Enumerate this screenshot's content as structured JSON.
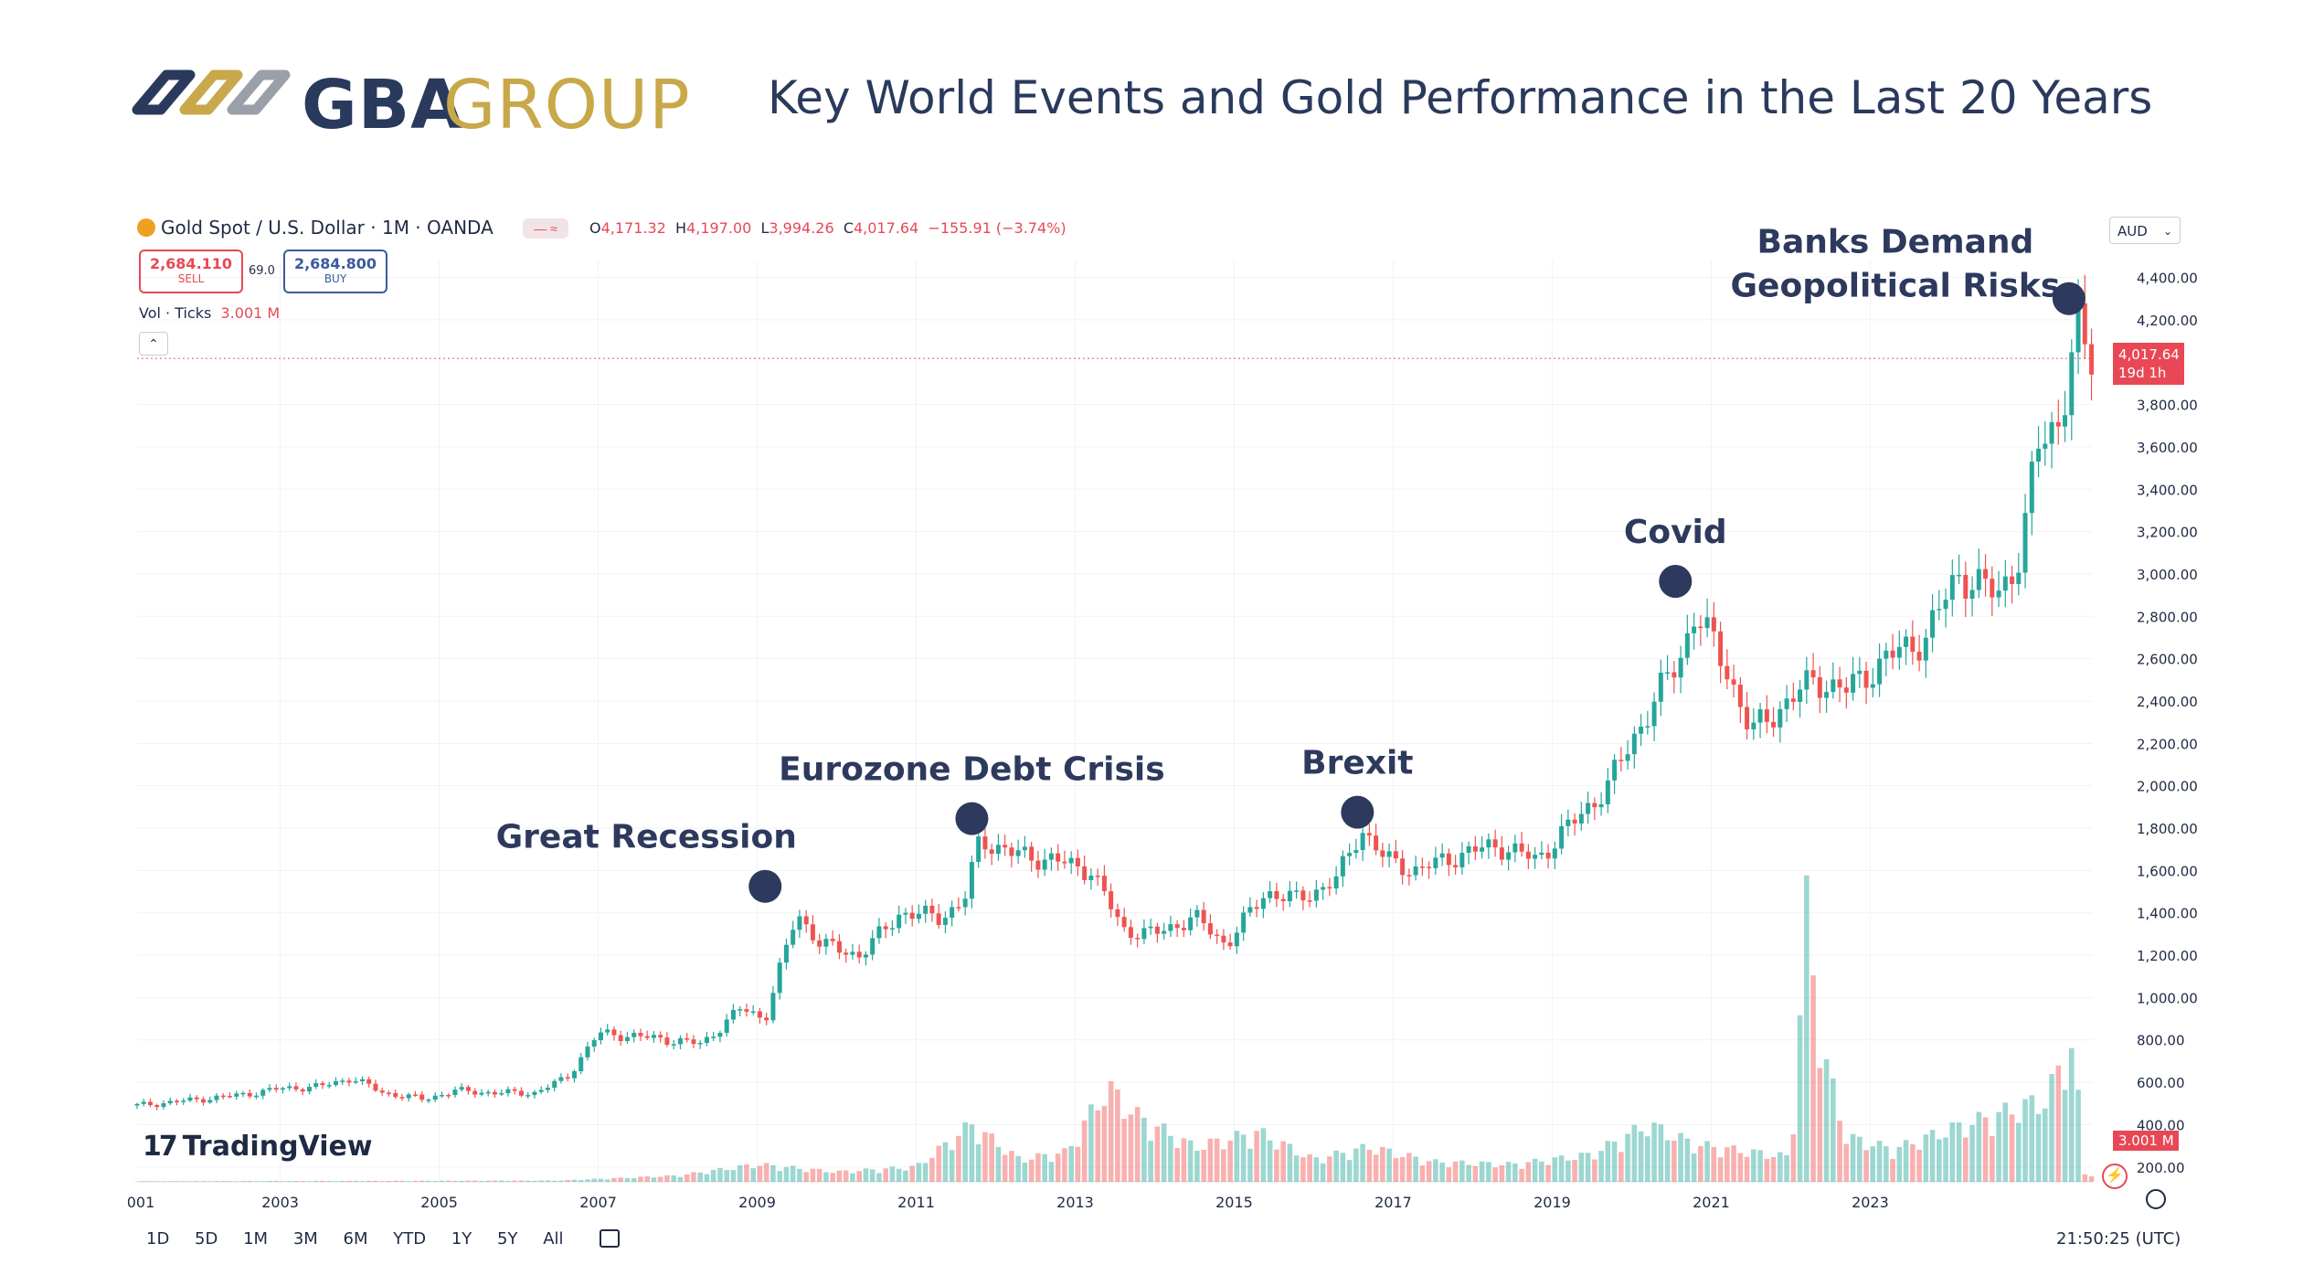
{
  "brand": {
    "name_bold": "GBA",
    "name_light": "GROUP",
    "colors": {
      "navy": "#2a3a5c",
      "gold": "#c8a84a",
      "grey": "#9aa0a8"
    }
  },
  "headline": "Key World Events and Gold Performance in the Last 20 Years",
  "toolbar": {
    "symbol": "Gold Spot / U.S. Dollar · 1M · OANDA",
    "ohlc": {
      "o_label": "O",
      "o": "4,171.32",
      "h_label": "H",
      "h": "4,197.00",
      "l_label": "L",
      "l": "3,994.26",
      "c_label": "C",
      "c": "4,017.64",
      "change": "−155.91 (−3.74%)"
    },
    "sell_price": "2,684.110",
    "sell_label": "SELL",
    "spread": "69.0",
    "buy_price": "2,684.800",
    "buy_label": "BUY",
    "vol_label": "Vol · Ticks",
    "vol_value": "3.001 M",
    "currency": "AUD",
    "last_price": "4,017.64",
    "countdown": "19d 1h",
    "vol_tag": "3.001 M",
    "watermark": "TradingView",
    "ranges": [
      "1D",
      "5D",
      "1M",
      "3M",
      "6M",
      "YTD",
      "1Y",
      "5Y",
      "All"
    ],
    "clock": "21:50:25 (UTC)"
  },
  "colors": {
    "up": "#26a69a",
    "down": "#ef5350",
    "grid": "#f1f3f6",
    "axis_text": "#1f2a44",
    "marker": "#2d3a5e"
  },
  "chart_data": {
    "type": "candlestick",
    "series": "Gold Spot / U.S. Dollar, monthly",
    "x_ticks": [
      "001",
      "2003",
      "2005",
      "2007",
      "2009",
      "2011",
      "2013",
      "2015",
      "2017",
      "2019",
      "2021",
      "2023"
    ],
    "x_range": [
      2001.2,
      2025.8
    ],
    "y_ticks": [
      "200.00",
      "400.00",
      "600.00",
      "800.00",
      "1,000.00",
      "1,200.00",
      "1,400.00",
      "1,600.00",
      "1,800.00",
      "2,000.00",
      "2,200.00",
      "2,400.00",
      "2,600.00",
      "2,800.00",
      "3,000.00",
      "3,200.00",
      "3,400.00",
      "3,600.00",
      "3,800.00",
      "4,200.00",
      "4,400.00"
    ],
    "y_range": [
      130,
      4480
    ],
    "price_path": [
      [
        2001.2,
        490
      ],
      [
        2002.0,
        520
      ],
      [
        2002.5,
        540
      ],
      [
        2003.0,
        570
      ],
      [
        2003.5,
        580
      ],
      [
        2003.9,
        620
      ],
      [
        2004.3,
        550
      ],
      [
        2004.8,
        520
      ],
      [
        2005.2,
        560
      ],
      [
        2005.7,
        550
      ],
      [
        2006.2,
        550
      ],
      [
        2006.6,
        620
      ],
      [
        2007.0,
        830
      ],
      [
        2007.4,
        820
      ],
      [
        2007.9,
        800
      ],
      [
        2008.3,
        780
      ],
      [
        2008.8,
        950
      ],
      [
        2009.1,
        900
      ],
      [
        2009.5,
        1400
      ],
      [
        2009.8,
        1250
      ],
      [
        2010.3,
        1200
      ],
      [
        2010.8,
        1400
      ],
      [
        2011.3,
        1380
      ],
      [
        2011.6,
        1450
      ],
      [
        2011.8,
        1750
      ],
      [
        2012.2,
        1680
      ],
      [
        2012.7,
        1650
      ],
      [
        2013.2,
        1600
      ],
      [
        2013.6,
        1320
      ],
      [
        2014.0,
        1300
      ],
      [
        2014.5,
        1380
      ],
      [
        2014.9,
        1250
      ],
      [
        2015.4,
        1500
      ],
      [
        2015.8,
        1460
      ],
      [
        2016.3,
        1560
      ],
      [
        2016.6,
        1800
      ],
      [
        2016.9,
        1650
      ],
      [
        2017.3,
        1600
      ],
      [
        2017.8,
        1670
      ],
      [
        2018.3,
        1720
      ],
      [
        2018.8,
        1650
      ],
      [
        2019.3,
        1840
      ],
      [
        2019.7,
        2000
      ],
      [
        2020.1,
        2280
      ],
      [
        2020.6,
        2600
      ],
      [
        2020.8,
        2820
      ],
      [
        2021.2,
        2550
      ],
      [
        2021.5,
        2250
      ],
      [
        2021.9,
        2380
      ],
      [
        2022.3,
        2500
      ],
      [
        2022.7,
        2450
      ],
      [
        2023.2,
        2600
      ],
      [
        2023.7,
        2700
      ],
      [
        2024.1,
        3000
      ],
      [
        2024.6,
        2900
      ],
      [
        2024.9,
        3100
      ],
      [
        2025.1,
        3600
      ],
      [
        2025.4,
        3750
      ],
      [
        2025.6,
        4150
      ],
      [
        2025.75,
        4017
      ]
    ],
    "volume_path": [
      [
        2001.2,
        2
      ],
      [
        2006.5,
        5
      ],
      [
        2008.0,
        25
      ],
      [
        2009.0,
        70
      ],
      [
        2010.0,
        40
      ],
      [
        2011.0,
        60
      ],
      [
        2011.7,
        230
      ],
      [
        2012.3,
        90
      ],
      [
        2012.9,
        120
      ],
      [
        2013.4,
        380
      ],
      [
        2013.8,
        260
      ],
      [
        2014.5,
        140
      ],
      [
        2015.3,
        200
      ],
      [
        2016.0,
        90
      ],
      [
        2016.7,
        140
      ],
      [
        2017.5,
        80
      ],
      [
        2018.5,
        70
      ],
      [
        2019.5,
        110
      ],
      [
        2020.2,
        230
      ],
      [
        2020.8,
        150
      ],
      [
        2021.5,
        120
      ],
      [
        2022.0,
        100
      ],
      [
        2022.2,
        1080
      ],
      [
        2022.4,
        520
      ],
      [
        2022.7,
        180
      ],
      [
        2023.3,
        130
      ],
      [
        2023.9,
        200
      ],
      [
        2024.5,
        260
      ],
      [
        2025.2,
        330
      ],
      [
        2025.55,
        560
      ],
      [
        2025.7,
        30
      ]
    ],
    "volume_y_range": [
      0,
      1200
    ],
    "annotations": [
      {
        "label": "Great Recession",
        "x": 2009.1,
        "y": 1525
      },
      {
        "label": "Eurozone Debt Crisis",
        "x": 2011.7,
        "y": 1845
      },
      {
        "label": "Brexit",
        "x": 2016.55,
        "y": 1875
      },
      {
        "label": "Covid",
        "x": 2020.55,
        "y": 2965
      },
      {
        "label": "Banks Demand\nGeopolitical Risks",
        "x": 2025.5,
        "y": 4300
      }
    ],
    "last_close": 4017.64
  }
}
